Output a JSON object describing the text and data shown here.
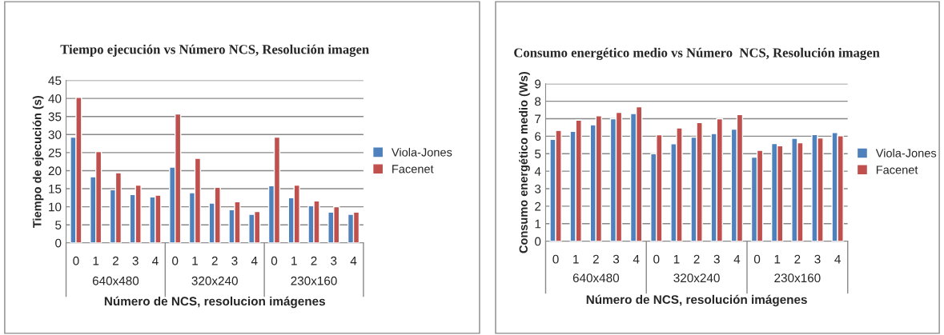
{
  "chart_data": [
    {
      "type": "bar",
      "title": "Tiempo ejecución vs Número NCS, Resolución imagen",
      "xlabel": "Número de NCS, resolucion imágenes",
      "ylabel": "Tiempo de ejecución (s)",
      "categories": [
        "0",
        "1",
        "2",
        "3",
        "4",
        "0",
        "1",
        "2",
        "3",
        "4",
        "0",
        "1",
        "2",
        "3",
        "4"
      ],
      "annotations": [
        "640x480",
        "320x240",
        "230x160"
      ],
      "series": [
        {
          "name": "Viola-Jones",
          "color": "#4f81bd",
          "values": [
            29.3,
            18.3,
            14.7,
            13.4,
            12.7,
            21,
            13.9,
            11,
            9.2,
            7.9,
            15.8,
            12.5,
            10.3,
            8.5,
            7.9
          ]
        },
        {
          "name": "Facenet",
          "color": "#c0504d",
          "values": [
            40.3,
            25.3,
            19.4,
            16,
            13.2,
            35.7,
            23.4,
            15.4,
            11.4,
            8.7,
            29.3,
            16,
            11.6,
            10,
            8.5
          ]
        }
      ],
      "ylim": [
        0,
        45
      ],
      "yticks": [
        0,
        5,
        10,
        15,
        20,
        25,
        30,
        35,
        40,
        45
      ],
      "grid": "y",
      "legend": "right"
    },
    {
      "type": "bar",
      "title": "Consumo energético medio vs Número  NCS, Resolución imagen",
      "xlabel": "Número de NCS, resolución imágenes",
      "ylabel": "Consumo energético medio (Ws)",
      "categories": [
        "0",
        "1",
        "2",
        "3",
        "4",
        "0",
        "1",
        "2",
        "3",
        "4",
        "0",
        "1",
        "2",
        "3",
        "4"
      ],
      "annotations": [
        "640x480",
        "320x240",
        "230x160"
      ],
      "series": [
        {
          "name": "Viola-Jones",
          "color": "#4f81bd",
          "values": [
            5.82,
            6.28,
            6.65,
            7.0,
            7.3,
            5.0,
            5.57,
            5.95,
            6.15,
            6.4,
            4.8,
            5.58,
            5.88,
            6.1,
            6.21
          ]
        },
        {
          "name": "Facenet",
          "color": "#c0504d",
          "values": [
            6.33,
            6.92,
            7.17,
            7.36,
            7.68,
            6.08,
            6.47,
            6.78,
            7.0,
            7.24,
            5.19,
            5.45,
            5.63,
            5.9,
            6.03
          ]
        }
      ],
      "ylim": [
        0,
        9
      ],
      "yticks": [
        0,
        1,
        2,
        3,
        4,
        5,
        6,
        7,
        8,
        9
      ],
      "grid": "y",
      "legend": "right"
    }
  ]
}
